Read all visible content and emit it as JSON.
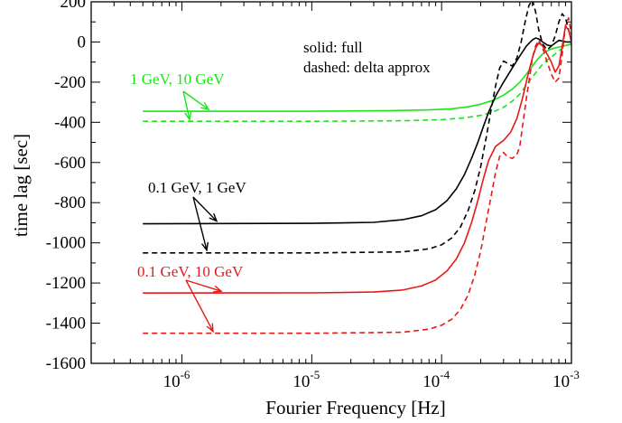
{
  "chart_data": {
    "type": "line",
    "xlabel": "Fourier Frequency [Hz]",
    "ylabel": "time lag [sec]",
    "xscale": "log",
    "xlim": [
      2e-07,
      0.001
    ],
    "ylim": [
      -1600,
      200
    ],
    "yticks": [
      200,
      0,
      -200,
      -400,
      -600,
      -800,
      -1000,
      -1200,
      -1400,
      -1600
    ],
    "xticks": [
      {
        "value": 1e-06,
        "base": "10",
        "exp": "-6"
      },
      {
        "value": 1e-05,
        "base": "10",
        "exp": "-5"
      },
      {
        "value": 0.0001,
        "base": "10",
        "exp": "-4"
      },
      {
        "value": 0.001,
        "base": "10",
        "exp": "-3"
      }
    ],
    "legend_text": [
      "solid:  full",
      "dashed:  delta approx"
    ],
    "series": [
      {
        "name": "1 GeV, 10 GeV",
        "style": "solid",
        "color": "#19e619",
        "points": [
          [
            5e-07,
            -345
          ],
          [
            1e-05,
            -345
          ],
          [
            4e-05,
            -342
          ],
          [
            8e-05,
            -338
          ],
          [
            0.00012,
            -333
          ],
          [
            0.00016,
            -323
          ],
          [
            0.0002,
            -310
          ],
          [
            0.00025,
            -290
          ],
          [
            0.0003,
            -265
          ],
          [
            0.00035,
            -235
          ],
          [
            0.0004,
            -200
          ],
          [
            0.00045,
            -160
          ],
          [
            0.0005,
            -120
          ],
          [
            0.00055,
            -85
          ],
          [
            0.0006,
            -60
          ],
          [
            0.00065,
            -45
          ],
          [
            0.0007,
            -35
          ],
          [
            0.0008,
            -25
          ],
          [
            0.0009,
            -18
          ],
          [
            0.001,
            -12
          ]
        ]
      },
      {
        "name": "1 GeV, 10 GeV",
        "style": "dashed",
        "color": "#19e619",
        "points": [
          [
            5e-07,
            -395
          ],
          [
            1e-05,
            -395
          ],
          [
            5e-05,
            -392
          ],
          [
            0.0001,
            -387
          ],
          [
            0.00015,
            -378
          ],
          [
            0.0002,
            -365
          ],
          [
            0.00025,
            -348
          ],
          [
            0.0003,
            -325
          ],
          [
            0.00035,
            -295
          ],
          [
            0.0004,
            -260
          ],
          [
            0.00045,
            -215
          ],
          [
            0.0005,
            -175
          ],
          [
            0.00055,
            -140
          ],
          [
            0.0006,
            -110
          ],
          [
            0.00065,
            -90
          ],
          [
            0.0007,
            -75
          ],
          [
            0.00075,
            -60
          ],
          [
            0.0008,
            -45
          ],
          [
            0.00085,
            -32
          ],
          [
            0.0009,
            -20
          ],
          [
            0.001,
            -8
          ]
        ]
      },
      {
        "name": "0.1 GeV, 1 GeV",
        "style": "solid",
        "color": "#000000",
        "points": [
          [
            5e-07,
            -905
          ],
          [
            1e-05,
            -903
          ],
          [
            3e-05,
            -898
          ],
          [
            5e-05,
            -885
          ],
          [
            7e-05,
            -865
          ],
          [
            9e-05,
            -835
          ],
          [
            0.00011,
            -790
          ],
          [
            0.00013,
            -730
          ],
          [
            0.00015,
            -660
          ],
          [
            0.00017,
            -580
          ],
          [
            0.00019,
            -500
          ],
          [
            0.00021,
            -420
          ],
          [
            0.00023,
            -350
          ],
          [
            0.00026,
            -270
          ],
          [
            0.0003,
            -200
          ],
          [
            0.00035,
            -130
          ],
          [
            0.0004,
            -70
          ],
          [
            0.00045,
            -20
          ],
          [
            0.0005,
            10
          ],
          [
            0.00053,
            20
          ],
          [
            0.00056,
            15
          ],
          [
            0.0006,
            0
          ],
          [
            0.00065,
            -15
          ],
          [
            0.0007,
            -20
          ],
          [
            0.00075,
            -5
          ],
          [
            0.0008,
            8
          ],
          [
            0.00085,
            5
          ],
          [
            0.0009,
            0
          ],
          [
            0.001,
            0
          ]
        ]
      },
      {
        "name": "0.1 GeV, 1 GeV",
        "style": "dashed",
        "color": "#000000",
        "points": [
          [
            5e-07,
            -1050
          ],
          [
            1e-05,
            -1050
          ],
          [
            5e-05,
            -1045
          ],
          [
            8e-05,
            -1030
          ],
          [
            0.0001,
            -1010
          ],
          [
            0.00012,
            -975
          ],
          [
            0.00014,
            -920
          ],
          [
            0.00016,
            -840
          ],
          [
            0.00018,
            -740
          ],
          [
            0.0002,
            -620
          ],
          [
            0.00022,
            -480
          ],
          [
            0.00024,
            -340
          ],
          [
            0.00026,
            -220
          ],
          [
            0.00028,
            -130
          ],
          [
            0.0003,
            -95
          ],
          [
            0.00032,
            -105
          ],
          [
            0.00035,
            -120
          ],
          [
            0.00038,
            -80
          ],
          [
            0.00041,
            0
          ],
          [
            0.00044,
            100
          ],
          [
            0.00047,
            180
          ],
          [
            0.0005,
            210
          ],
          [
            0.00053,
            150
          ],
          [
            0.00056,
            60
          ],
          [
            0.0006,
            -10
          ],
          [
            0.00065,
            -40
          ],
          [
            0.0007,
            -20
          ],
          [
            0.00075,
            30
          ],
          [
            0.0008,
            100
          ],
          [
            0.00085,
            140
          ],
          [
            0.0009,
            120
          ],
          [
            0.00095,
            60
          ],
          [
            0.001,
            20
          ]
        ]
      },
      {
        "name": "0.1 GeV, 10 GeV",
        "style": "solid",
        "color": "#e61919",
        "points": [
          [
            5e-07,
            -1250
          ],
          [
            1e-05,
            -1249
          ],
          [
            3e-05,
            -1245
          ],
          [
            5e-05,
            -1235
          ],
          [
            7e-05,
            -1215
          ],
          [
            9e-05,
            -1185
          ],
          [
            0.00011,
            -1140
          ],
          [
            0.00013,
            -1080
          ],
          [
            0.00015,
            -1000
          ],
          [
            0.00017,
            -900
          ],
          [
            0.00019,
            -790
          ],
          [
            0.00021,
            -680
          ],
          [
            0.00023,
            -590
          ],
          [
            0.00026,
            -520
          ],
          [
            0.0003,
            -490
          ],
          [
            0.00034,
            -450
          ],
          [
            0.00038,
            -380
          ],
          [
            0.00042,
            -280
          ],
          [
            0.00046,
            -170
          ],
          [
            0.0005,
            -80
          ],
          [
            0.00053,
            -30
          ],
          [
            0.00056,
            -5
          ],
          [
            0.0006,
            -20
          ],
          [
            0.00065,
            -60
          ],
          [
            0.0007,
            -100
          ],
          [
            0.00075,
            -150
          ],
          [
            0.0008,
            -120
          ],
          [
            0.00085,
            -20
          ],
          [
            0.0009,
            80
          ],
          [
            0.00095,
            60
          ],
          [
            0.001,
            0
          ]
        ]
      },
      {
        "name": "0.1 GeV, 10 GeV",
        "style": "dashed",
        "color": "#e61919",
        "points": [
          [
            5e-07,
            -1450
          ],
          [
            1e-05,
            -1450
          ],
          [
            5e-05,
            -1445
          ],
          [
            8e-05,
            -1430
          ],
          [
            0.0001,
            -1410
          ],
          [
            0.00012,
            -1380
          ],
          [
            0.00014,
            -1330
          ],
          [
            0.00016,
            -1260
          ],
          [
            0.00018,
            -1160
          ],
          [
            0.0002,
            -1040
          ],
          [
            0.00022,
            -900
          ],
          [
            0.00024,
            -770
          ],
          [
            0.00026,
            -650
          ],
          [
            0.00028,
            -570
          ],
          [
            0.0003,
            -550
          ],
          [
            0.00032,
            -570
          ],
          [
            0.00035,
            -580
          ],
          [
            0.00038,
            -560
          ],
          [
            0.0004,
            -520
          ],
          [
            0.00042,
            -420
          ],
          [
            0.00045,
            -280
          ],
          [
            0.00048,
            -160
          ],
          [
            0.0005,
            -80
          ],
          [
            0.00053,
            -20
          ],
          [
            0.00056,
            10
          ],
          [
            0.0006,
            -30
          ],
          [
            0.00065,
            -100
          ],
          [
            0.0007,
            -160
          ],
          [
            0.00075,
            -200
          ],
          [
            0.0008,
            -180
          ],
          [
            0.00085,
            -60
          ],
          [
            0.0009,
            80
          ],
          [
            0.00095,
            120
          ],
          [
            0.001,
            40
          ]
        ]
      }
    ],
    "annotations": [
      {
        "text": "1 GeV, 10 GeV",
        "color": "#19e619"
      },
      {
        "text": "0.1 GeV, 1 GeV",
        "color": "#000000"
      },
      {
        "text": "0.1 GeV, 10 GeV",
        "color": "#e61919"
      }
    ]
  }
}
